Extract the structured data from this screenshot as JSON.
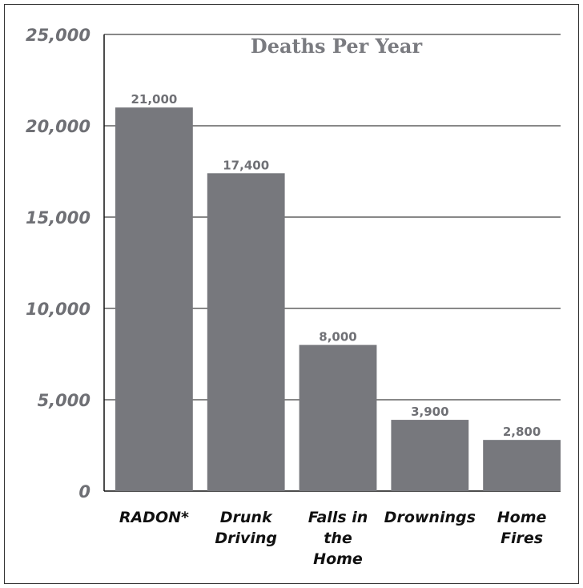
{
  "colors": {
    "bar": "#77787d",
    "tick_text": "#6f7075",
    "label_text": "#111111",
    "grid": "#111111"
  },
  "chart_data": {
    "type": "bar",
    "title": "Deaths Per Year",
    "xlabel": "",
    "ylabel": "",
    "ylim": [
      0,
      25000
    ],
    "grid": true,
    "yticks": [
      0,
      5000,
      10000,
      15000,
      20000,
      25000
    ],
    "ytick_labels": [
      "0",
      "5,000",
      "10,000",
      "15,000",
      "20,000",
      "25,000"
    ],
    "categories": [
      "RADON*",
      "Drunk Driving",
      "Falls in the Home",
      "Drownings",
      "Home Fires"
    ],
    "category_lines": [
      [
        "RADON*"
      ],
      [
        "Drunk",
        "Driving"
      ],
      [
        "Falls in",
        "the",
        "Home"
      ],
      [
        "Drownings"
      ],
      [
        "Home",
        "Fires"
      ]
    ],
    "values": [
      21000,
      17400,
      8000,
      3900,
      2800
    ],
    "data_labels": [
      "21,000",
      "17,400",
      "8,000",
      "3,900",
      "2,800"
    ]
  }
}
